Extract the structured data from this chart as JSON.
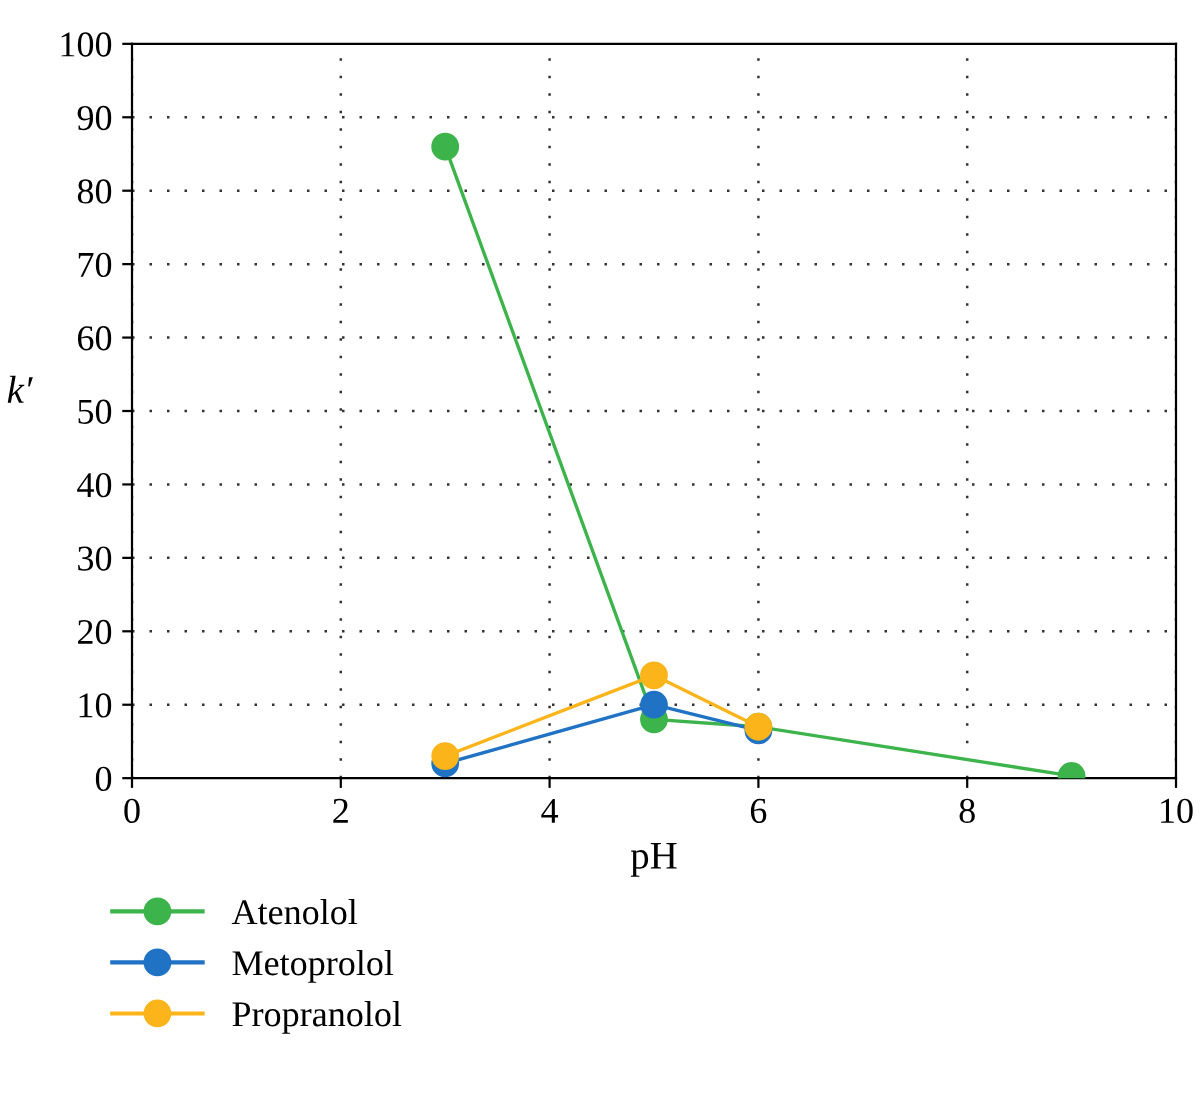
{
  "chart_data": {
    "type": "line",
    "xlabel": "pH",
    "ylabel": "k′",
    "x": [
      3,
      5,
      6,
      9
    ],
    "series": [
      {
        "name": "Atenolol",
        "color": "#3cb44b",
        "values": [
          86,
          8,
          7,
          0.3
        ]
      },
      {
        "name": "Metoprolol",
        "color": "#1f72c4",
        "values": [
          2,
          10,
          6.5,
          null
        ]
      },
      {
        "name": "Propranolol",
        "color": "#fbb41a",
        "values": [
          3,
          14,
          7,
          null
        ]
      }
    ],
    "xlim": [
      0,
      10
    ],
    "xticks": [
      0,
      2,
      4,
      6,
      8,
      10
    ],
    "ylim": [
      0,
      100
    ],
    "yticks": [
      0,
      10,
      20,
      30,
      40,
      50,
      60,
      70,
      80,
      90,
      100
    ],
    "grid": true,
    "legend": "bottom left",
    "marker": "circle",
    "line_style": "solid"
  }
}
